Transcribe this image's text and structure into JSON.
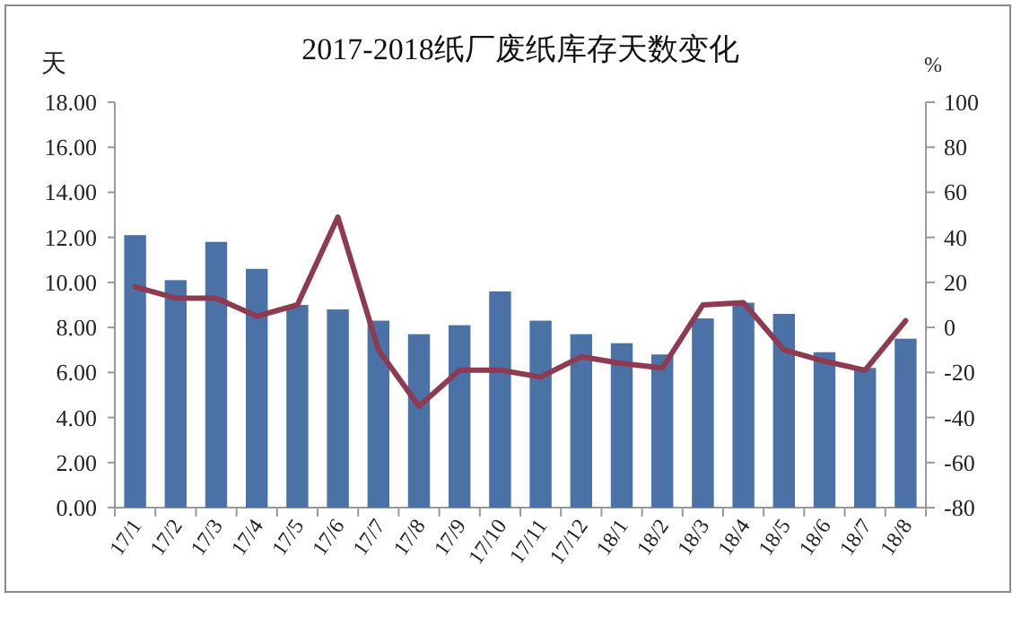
{
  "chart_data": {
    "type": "bar",
    "title": "2017-2018纸厂废纸库存天数变化",
    "ylabel": "天",
    "y2label": "%",
    "categories": [
      "17/1",
      "17/2",
      "17/3",
      "17/4",
      "17/5",
      "17/6",
      "17/7",
      "17/8",
      "17/9",
      "17/10",
      "17/11",
      "17/12",
      "18/1",
      "18/2",
      "18/3",
      "18/4",
      "18/5",
      "18/6",
      "18/7",
      "18/8"
    ],
    "series": [
      {
        "color": "#4a72a6",
        "values": [
          12.1,
          10.1,
          11.8,
          10.6,
          9.0,
          8.8,
          8.3,
          7.7,
          8.1,
          9.6,
          8.3,
          7.7,
          7.3,
          6.8,
          8.4,
          9.1,
          8.6,
          6.9,
          6.2,
          7.5
        ]
      },
      {
        "type": "line",
        "axis": "y2",
        "color": "#8e3a50",
        "values": [
          18,
          13,
          13,
          5,
          10,
          49,
          -10,
          -35,
          -19,
          -19,
          -22,
          -13,
          -16,
          -18,
          10,
          11,
          -10,
          -15,
          -19,
          3
        ]
      }
    ],
    "ylim": [
      0,
      18
    ],
    "yticks": [
      {
        "value": 0,
        "label": "0.00"
      },
      {
        "value": 2,
        "label": "2.00"
      },
      {
        "value": 4,
        "label": "4.00"
      },
      {
        "value": 6,
        "label": "6.00"
      },
      {
        "value": 8,
        "label": "8.00"
      },
      {
        "value": 10,
        "label": "10.00"
      },
      {
        "value": 12,
        "label": "12.00"
      },
      {
        "value": 14,
        "label": "14.00"
      },
      {
        "value": 16,
        "label": "16.00"
      },
      {
        "value": 18,
        "label": "18.00"
      }
    ],
    "y2lim": [
      -80,
      100
    ],
    "y2ticks": [
      -80,
      -60,
      -40,
      -20,
      0,
      20,
      40,
      60,
      80,
      100
    ]
  }
}
